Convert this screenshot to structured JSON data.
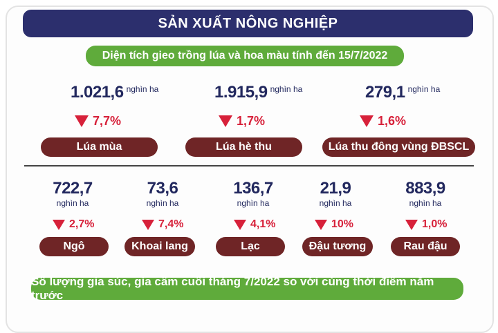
{
  "title": "SẢN XUẤT NÔNG NGHIỆP",
  "subtitle_area": "Diện tích gieo trồng lúa và hoa màu tính đến 15/7/2022",
  "rice": [
    {
      "value": "1.021,6",
      "unit": "nghìn ha",
      "change": "7,7%",
      "label": "Lúa mùa"
    },
    {
      "value": "1.915,9",
      "unit": "nghìn ha",
      "change": "1,7%",
      "label": "Lúa hè thu"
    },
    {
      "value": "279,1",
      "unit": "nghìn ha",
      "change": "1,6%",
      "label": "Lúa thu đông vùng ĐBSCL"
    }
  ],
  "crops": [
    {
      "value": "722,7",
      "unit": "nghìn ha",
      "change": "2,7%",
      "label": "Ngô"
    },
    {
      "value": "73,6",
      "unit": "nghìn ha",
      "change": "7,4%",
      "label": "Khoai lang"
    },
    {
      "value": "136,7",
      "unit": "nghìn ha",
      "change": "4,1%",
      "label": "Lạc"
    },
    {
      "value": "21,9",
      "unit": "nghìn ha",
      "change": "10%",
      "label": "Đậu tương"
    },
    {
      "value": "883,9",
      "unit": "nghìn ha",
      "change": "1,0%",
      "label": "Rau đậu"
    }
  ],
  "subtitle_livestock": "Số lượng gia súc, gia cầm cuối tháng 7/2022 so với cùng thời điểm năm trước",
  "colors": {
    "title_bg": "#2c2f6d",
    "green": "#5fab3b",
    "pill": "#6f2526",
    "down": "#d7213a",
    "value": "#22285e"
  },
  "icons": {
    "change": "down-triangle-icon"
  }
}
